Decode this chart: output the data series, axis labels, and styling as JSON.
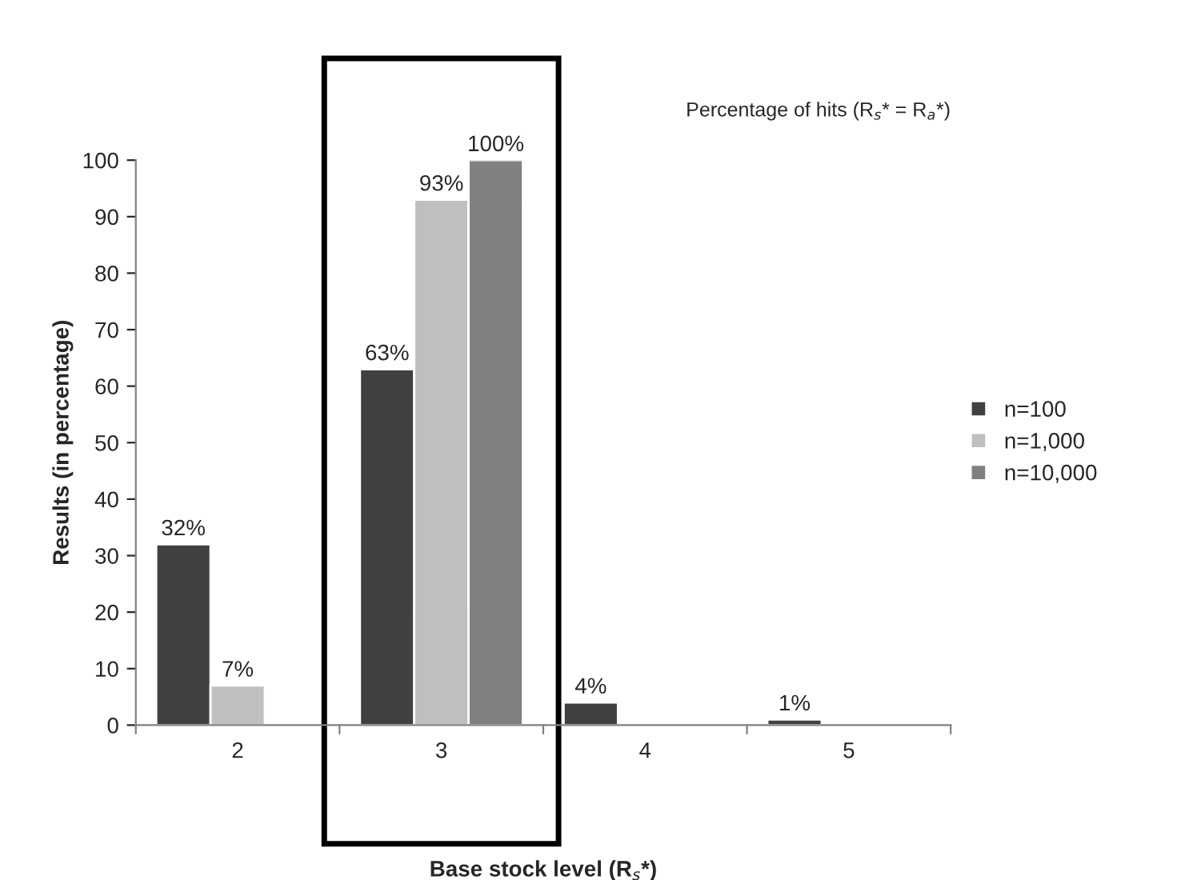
{
  "chart_data": {
    "type": "bar",
    "xlabel": "Base stock level (R$_{s}$*)",
    "ylabel": "Results (in percentage)",
    "categories": [
      "2",
      "3",
      "4",
      "5"
    ],
    "series": [
      {
        "name": "n=100",
        "color": "#404040",
        "values": [
          32,
          63,
          4,
          1
        ],
        "value_labels": [
          "32%",
          "63%",
          "4%",
          "1%"
        ]
      },
      {
        "name": "n=1,000",
        "color": "#bfbfbf",
        "values": [
          7,
          93,
          null,
          null
        ],
        "value_labels": [
          "7%",
          "93%",
          null,
          null
        ]
      },
      {
        "name": "n=10,000",
        "color": "#808080",
        "values": [
          null,
          100,
          null,
          null
        ],
        "value_labels": [
          null,
          "100%",
          null,
          null
        ]
      }
    ],
    "ylim": [
      0,
      100
    ],
    "yticks": [
      0,
      10,
      20,
      30,
      40,
      50,
      60,
      70,
      80,
      90,
      100
    ],
    "grid": false,
    "legend": "right",
    "annotations": [
      "Percentage of hits (R$_{s}$* = R$_{a}$*)"
    ]
  }
}
